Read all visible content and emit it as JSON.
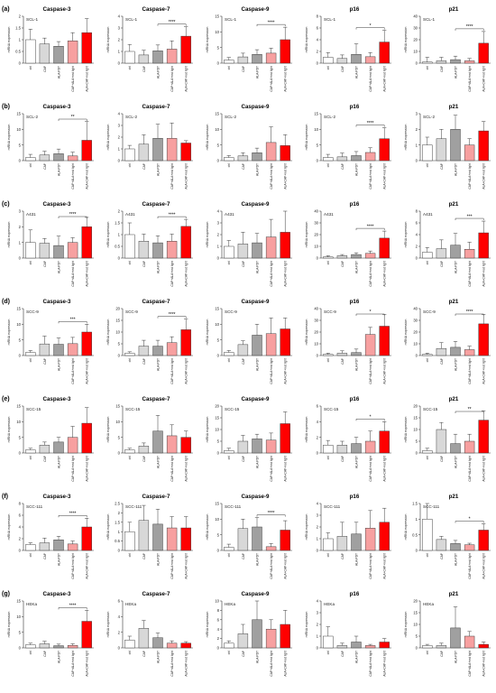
{
  "figure": {
    "categories": [
      "ctrl",
      "CAP",
      "ALA-PDT",
      "CAP+ALA+red light",
      "ALA+CAP+red light"
    ],
    "bar_colors": [
      "#ffffff",
      "#d8d8d8",
      "#a0a0a0",
      "#f7a0a0",
      "#ff0000"
    ],
    "edge_color": "#333333",
    "sig_mark": "****",
    "ylabel": "mRNA expression",
    "genes": [
      "Caspase-3",
      "Caspase-7",
      "Caspase-9",
      "p16",
      "p21"
    ]
  },
  "chart_data": [
    {
      "row_label": "(a)",
      "type": "bar",
      "title": "Caspase-3",
      "cell_line": "SCL-1",
      "ylim": [
        0,
        2
      ],
      "yticks": [
        0,
        0.5,
        1,
        1.5,
        2
      ],
      "values": [
        1,
        0.82,
        0.72,
        0.95,
        1.3
      ],
      "errors": [
        0.45,
        0.25,
        0.2,
        0.35,
        0.6
      ],
      "sig": null
    },
    {
      "row_label": "(a)",
      "type": "bar",
      "title": "Caspase-7",
      "cell_line": "SCL-1",
      "ylim": [
        0,
        4
      ],
      "yticks": [
        0,
        1,
        2,
        3,
        4
      ],
      "values": [
        1,
        0.7,
        1.05,
        1.2,
        2.3
      ],
      "errors": [
        0.6,
        0.4,
        0.5,
        0.7,
        0.8
      ],
      "sig": "****"
    },
    {
      "row_label": "(a)",
      "type": "bar",
      "title": "Caspase-9",
      "cell_line": "SCL-1",
      "ylim": [
        0,
        15
      ],
      "yticks": [
        0,
        5,
        10,
        15
      ],
      "values": [
        1,
        2,
        2.8,
        3.2,
        7.5
      ],
      "errors": [
        0.8,
        1.2,
        1.5,
        1.6,
        4
      ],
      "sig": "****"
    },
    {
      "row_label": "(a)",
      "type": "bar",
      "title": "p16",
      "cell_line": "SCL-1",
      "ylim": [
        0,
        8
      ],
      "yticks": [
        0,
        2,
        4,
        6,
        8
      ],
      "values": [
        1,
        0.8,
        1.5,
        1.1,
        3.6
      ],
      "errors": [
        0.8,
        0.6,
        1.8,
        0.7,
        2
      ],
      "sig": "*"
    },
    {
      "row_label": "(a)",
      "type": "bar",
      "title": "p21",
      "cell_line": "SCL-1",
      "ylim": [
        0,
        40
      ],
      "yticks": [
        0,
        10,
        20,
        30,
        40
      ],
      "values": [
        1,
        2,
        3,
        2,
        17
      ],
      "errors": [
        4,
        3,
        3,
        2,
        10
      ],
      "sig": "****"
    },
    {
      "row_label": "(b)",
      "type": "bar",
      "title": "Caspase-3",
      "cell_line": "SCL-2",
      "ylim": [
        0,
        15
      ],
      "yticks": [
        0,
        5,
        10,
        15
      ],
      "values": [
        1,
        1.8,
        2.2,
        1.5,
        6.5
      ],
      "errors": [
        1,
        1.2,
        1.5,
        1.2,
        6
      ],
      "sig": "**"
    },
    {
      "row_label": "(b)",
      "type": "bar",
      "title": "Caspase-7",
      "cell_line": "SCL-2",
      "ylim": [
        0,
        4
      ],
      "yticks": [
        0,
        1,
        2,
        3,
        4
      ],
      "values": [
        1,
        1.4,
        1.9,
        1.9,
        1.5
      ],
      "errors": [
        0.3,
        0.8,
        1.2,
        1.3,
        0.2
      ],
      "sig": null
    },
    {
      "row_label": "(b)",
      "type": "bar",
      "title": "Caspase-9",
      "cell_line": "SCL-2",
      "ylim": [
        0,
        15
      ],
      "yticks": [
        0,
        5,
        10,
        15
      ],
      "values": [
        1,
        1.5,
        2.5,
        5.8,
        4.8
      ],
      "errors": [
        0.6,
        1,
        1.5,
        5,
        3.5
      ],
      "sig": null
    },
    {
      "row_label": "(b)",
      "type": "bar",
      "title": "p16",
      "cell_line": "SCL-2",
      "ylim": [
        0,
        15
      ],
      "yticks": [
        0,
        5,
        10,
        15
      ],
      "values": [
        1,
        1.2,
        1.6,
        2.6,
        7
      ],
      "errors": [
        1,
        1.2,
        1.3,
        1.5,
        3.5
      ],
      "sig": "****"
    },
    {
      "row_label": "(b)",
      "type": "bar",
      "title": "p21",
      "cell_line": "SCL-2",
      "ylim": [
        0,
        3
      ],
      "yticks": [
        0,
        1,
        2,
        3
      ],
      "values": [
        1,
        1.4,
        2,
        1,
        1.9
      ],
      "errors": [
        0.5,
        0.6,
        0.9,
        0.4,
        0.6
      ],
      "sig": null
    },
    {
      "row_label": "(c)",
      "type": "bar",
      "title": "Caspase-3",
      "cell_line": "A431",
      "ylim": [
        0,
        3
      ],
      "yticks": [
        0,
        1,
        2,
        3
      ],
      "values": [
        1,
        0.95,
        0.8,
        1,
        2
      ],
      "errors": [
        0.8,
        0.3,
        0.6,
        0.3,
        0.6
      ],
      "sig": "****"
    },
    {
      "row_label": "(c)",
      "type": "bar",
      "title": "Caspase-7",
      "cell_line": "A431",
      "ylim": [
        0,
        2
      ],
      "yticks": [
        0,
        0.5,
        1,
        1.5,
        2
      ],
      "values": [
        1,
        0.72,
        0.65,
        0.72,
        1.35
      ],
      "errors": [
        0.5,
        0.3,
        0.3,
        0.3,
        0.3
      ],
      "sig": "****"
    },
    {
      "row_label": "(c)",
      "type": "bar",
      "title": "Caspase-9",
      "cell_line": "A431",
      "ylim": [
        0,
        4
      ],
      "yticks": [
        0,
        1,
        2,
        3,
        4
      ],
      "values": [
        1,
        1.2,
        1.3,
        1.8,
        2.2
      ],
      "errors": [
        0.5,
        1,
        0.8,
        1.5,
        1.8
      ],
      "sig": null
    },
    {
      "row_label": "(c)",
      "type": "bar",
      "title": "p16",
      "cell_line": "A431",
      "ylim": [
        0,
        40
      ],
      "yticks": [
        0,
        10,
        20,
        30,
        40
      ],
      "values": [
        1,
        2,
        3,
        4,
        17
      ],
      "errors": [
        1,
        1,
        1.5,
        2,
        6
      ],
      "sig": "****"
    },
    {
      "row_label": "(c)",
      "type": "bar",
      "title": "p21",
      "cell_line": "A431",
      "ylim": [
        0,
        8
      ],
      "yticks": [
        0,
        2,
        4,
        6,
        8
      ],
      "values": [
        1,
        1.6,
        2.2,
        1.5,
        4.3
      ],
      "errors": [
        0.8,
        1.5,
        2,
        1.2,
        2
      ],
      "sig": "***"
    },
    {
      "row_label": "(d)",
      "type": "bar",
      "title": "Caspase-3",
      "cell_line": "SCC-9",
      "ylim": [
        0,
        15
      ],
      "yticks": [
        0,
        5,
        10,
        15
      ],
      "values": [
        1,
        3.7,
        3.6,
        3.8,
        7.5
      ],
      "errors": [
        0.6,
        2.5,
        2,
        2,
        2.5
      ],
      "sig": "***"
    },
    {
      "row_label": "(d)",
      "type": "bar",
      "title": "Caspase-7",
      "cell_line": "SCC-9",
      "ylim": [
        0,
        20
      ],
      "yticks": [
        0,
        5,
        10,
        15,
        20
      ],
      "values": [
        1,
        4,
        4,
        5.5,
        11
      ],
      "errors": [
        0.6,
        2.5,
        2.5,
        2.5,
        4.5
      ],
      "sig": "****"
    },
    {
      "row_label": "(d)",
      "type": "bar",
      "title": "Caspase-9",
      "cell_line": "SCC-9",
      "ylim": [
        0,
        15
      ],
      "yticks": [
        0,
        5,
        10,
        15
      ],
      "values": [
        1,
        3.5,
        6.5,
        7,
        8.5
      ],
      "errors": [
        0.6,
        1.2,
        3.5,
        5,
        3.5
      ],
      "sig": null
    },
    {
      "row_label": "(d)",
      "type": "bar",
      "title": "p16",
      "cell_line": "SCC-9",
      "ylim": [
        0,
        40
      ],
      "yticks": [
        0,
        10,
        20,
        30,
        40
      ],
      "values": [
        1,
        2,
        2.5,
        18,
        25
      ],
      "errors": [
        1,
        2,
        3,
        6,
        10
      ],
      "sig": "*"
    },
    {
      "row_label": "(d)",
      "type": "bar",
      "title": "p21",
      "cell_line": "SCC-9",
      "ylim": [
        0,
        40
      ],
      "yticks": [
        0,
        10,
        20,
        30,
        40
      ],
      "values": [
        1,
        6,
        7,
        5,
        27
      ],
      "errors": [
        1,
        5,
        5,
        3,
        8
      ],
      "sig": "****"
    },
    {
      "row_label": "(e)",
      "type": "bar",
      "title": "Caspase-3",
      "cell_line": "SCC-15",
      "ylim": [
        0,
        15
      ],
      "yticks": [
        0,
        5,
        10,
        15
      ],
      "values": [
        1,
        2.5,
        3.5,
        5,
        9.5
      ],
      "errors": [
        0.5,
        1,
        1.5,
        3.5,
        5
      ],
      "sig": null
    },
    {
      "row_label": "(e)",
      "type": "bar",
      "title": "Caspase-7",
      "cell_line": "SCC-15",
      "ylim": [
        0,
        15
      ],
      "yticks": [
        0,
        5,
        10,
        15
      ],
      "values": [
        1,
        2.2,
        7,
        5.5,
        5
      ],
      "errors": [
        0.5,
        1,
        5,
        3.5,
        2
      ],
      "sig": null
    },
    {
      "row_label": "(e)",
      "type": "bar",
      "title": "Caspase-9",
      "cell_line": "SCC-15",
      "ylim": [
        0,
        20
      ],
      "yticks": [
        0,
        5,
        10,
        15,
        20
      ],
      "values": [
        1,
        5,
        6,
        5.5,
        12.5
      ],
      "errors": [
        1,
        2.5,
        2,
        3,
        5
      ],
      "sig": null
    },
    {
      "row_label": "(e)",
      "type": "bar",
      "title": "p16",
      "cell_line": "SCC-15",
      "ylim": [
        0,
        6
      ],
      "yticks": [
        0,
        2,
        4,
        6
      ],
      "values": [
        1,
        1,
        1.2,
        1.5,
        2.8
      ],
      "errors": [
        0.6,
        0.5,
        0.8,
        1.3,
        1.2
      ],
      "sig": "*"
    },
    {
      "row_label": "(e)",
      "type": "bar",
      "title": "p21",
      "cell_line": "SCC-15",
      "ylim": [
        0,
        20
      ],
      "yticks": [
        0,
        5,
        10,
        15,
        20
      ],
      "values": [
        1,
        10,
        4,
        5,
        14
      ],
      "errors": [
        1,
        3,
        4,
        3,
        4
      ],
      "sig": "**"
    },
    {
      "row_label": "(f)",
      "type": "bar",
      "title": "Caspase-3",
      "cell_line": "SCC-111",
      "ylim": [
        0,
        8
      ],
      "yticks": [
        0,
        2,
        4,
        6,
        8
      ],
      "values": [
        1,
        1.3,
        1.8,
        1.1,
        4
      ],
      "errors": [
        0.3,
        0.8,
        0.6,
        0.5,
        1.5
      ],
      "sig": "****"
    },
    {
      "row_label": "(f)",
      "type": "bar",
      "title": "Caspase-7",
      "cell_line": "SCC-111",
      "ylim": [
        0,
        2.5
      ],
      "yticks": [
        0,
        0.5,
        1,
        1.5,
        2,
        2.5
      ],
      "values": [
        1,
        1.6,
        1.4,
        1.2,
        1.2
      ],
      "errors": [
        0.5,
        0.8,
        0.8,
        0.6,
        0.6
      ],
      "sig": null
    },
    {
      "row_label": "(f)",
      "type": "bar",
      "title": "Caspase-9",
      "cell_line": "SCC-111",
      "ylim": [
        0,
        15
      ],
      "yticks": [
        0,
        5,
        10,
        15
      ],
      "values": [
        1,
        7,
        7.5,
        1.2,
        6.5
      ],
      "errors": [
        1,
        3,
        3,
        1,
        3
      ],
      "sig": "****"
    },
    {
      "row_label": "(f)",
      "type": "bar",
      "title": "p16",
      "cell_line": "SCC-111",
      "ylim": [
        0,
        4
      ],
      "yticks": [
        0,
        1,
        2,
        3,
        4
      ],
      "values": [
        1,
        1.2,
        1.4,
        1.9,
        2.4
      ],
      "errors": [
        0.5,
        1.2,
        1,
        1.5,
        1.2
      ],
      "sig": null
    },
    {
      "row_label": "(f)",
      "type": "bar",
      "title": "p21",
      "cell_line": "SCC-111",
      "ylim": [
        0,
        1.5
      ],
      "yticks": [
        0,
        0.5,
        1,
        1.5
      ],
      "values": [
        1,
        0.35,
        0.22,
        0.18,
        0.65
      ],
      "errors": [
        0.5,
        0.1,
        0.1,
        0.05,
        0.2
      ],
      "sig": "*"
    },
    {
      "row_label": "(g)",
      "type": "bar",
      "title": "Caspase-3",
      "cell_line": "HEKa",
      "ylim": [
        0,
        15
      ],
      "yticks": [
        0,
        5,
        10,
        15
      ],
      "values": [
        1,
        1.3,
        0.7,
        0.8,
        8.5
      ],
      "errors": [
        0.5,
        0.8,
        0.5,
        0.5,
        3.5
      ],
      "sig": "****"
    },
    {
      "row_label": "(g)",
      "type": "bar",
      "title": "Caspase-7",
      "cell_line": "HEKa",
      "ylim": [
        0,
        6
      ],
      "yticks": [
        0,
        2,
        4,
        6
      ],
      "values": [
        1,
        2.5,
        1.3,
        0.6,
        0.6
      ],
      "errors": [
        0.5,
        1,
        0.6,
        0.3,
        0.2
      ],
      "sig": null
    },
    {
      "row_label": "(g)",
      "type": "bar",
      "title": "Caspase-9",
      "cell_line": "HEKa",
      "ylim": [
        0,
        10
      ],
      "yticks": [
        0,
        2,
        4,
        6,
        8,
        10
      ],
      "values": [
        1,
        3,
        6,
        4,
        5
      ],
      "errors": [
        0.5,
        2,
        4,
        2,
        3
      ],
      "sig": null
    },
    {
      "row_label": "(g)",
      "type": "bar",
      "title": "p16",
      "cell_line": "HEKa",
      "ylim": [
        0,
        4
      ],
      "yticks": [
        0,
        1,
        2,
        3,
        4
      ],
      "values": [
        1,
        0.2,
        0.5,
        0.2,
        0.5
      ],
      "errors": [
        0.8,
        0.2,
        0.5,
        0.1,
        0.3
      ],
      "sig": null
    },
    {
      "row_label": "(g)",
      "type": "bar",
      "title": "p21",
      "cell_line": "HEKa",
      "ylim": [
        0,
        20
      ],
      "yticks": [
        0,
        5,
        10,
        15,
        20
      ],
      "values": [
        1,
        1,
        8.5,
        5,
        1.5
      ],
      "errors": [
        0.5,
        1,
        9,
        2,
        1
      ],
      "sig": null
    }
  ]
}
